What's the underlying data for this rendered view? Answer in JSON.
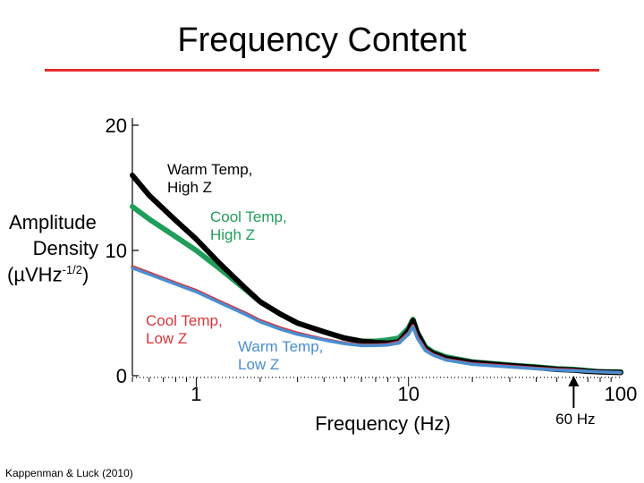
{
  "slide": {
    "title": "Frequency Content",
    "citation": "Kappenman & Luck (2010)"
  },
  "colors": {
    "title_rule": "#e32b2b",
    "warm_high": "#000000",
    "cool_high": "#1f9e5a",
    "cool_low": "#d9343a",
    "warm_low": "#4a8ed0",
    "axis": "#000000"
  },
  "chart_data": {
    "type": "line",
    "title": "",
    "xlabel": "Frequency (Hz)",
    "ylabel_lines": [
      "Amplitude",
      "Density",
      "(µVHz⁻¹ᐟ²)"
    ],
    "ylabel_line1": "Amplitude",
    "ylabel_line2": "Density",
    "ylabel_line3": "(µVHz",
    "ylabel_sup": "-1/2",
    "ylabel_close": ")",
    "x_scale": "log",
    "xlim": [
      0.5,
      100
    ],
    "ylim": [
      0,
      20
    ],
    "x_ticks": [
      {
        "value": 1,
        "label": "1"
      },
      {
        "value": 10,
        "label": "10"
      },
      {
        "value": 100,
        "label": "100"
      }
    ],
    "y_ticks": [
      {
        "value": 0,
        "label": "0"
      },
      {
        "value": 10,
        "label": "10"
      },
      {
        "value": 20,
        "label": "20"
      }
    ],
    "annotation": {
      "label": "60 Hz",
      "x": 60
    },
    "series": [
      {
        "name": "Warm Temp, High Z",
        "label_line1": "Warm Temp,",
        "label_line2": "High Z",
        "color": "#000000",
        "x": [
          0.5,
          0.6,
          0.8,
          1,
          1.3,
          1.7,
          2,
          2.5,
          3,
          4,
          5,
          6,
          7,
          8,
          9,
          10,
          10.5,
          11,
          12,
          13,
          15,
          20,
          30,
          40,
          50,
          60,
          70,
          80,
          100
        ],
        "y": [
          16.0,
          14.4,
          12.4,
          10.9,
          8.9,
          7.0,
          5.9,
          4.9,
          4.2,
          3.5,
          3.0,
          2.75,
          2.65,
          2.6,
          2.7,
          3.6,
          4.4,
          3.4,
          2.2,
          1.8,
          1.4,
          1.05,
          0.8,
          0.65,
          0.5,
          0.45,
          0.35,
          0.3,
          0.25
        ]
      },
      {
        "name": "Cool Temp, High Z",
        "label_line1": "Cool Temp,",
        "label_line2": "High Z",
        "color": "#1f9e5a",
        "x": [
          0.5,
          0.6,
          0.8,
          1,
          1.3,
          1.7,
          2,
          2.5,
          3,
          4,
          5,
          6,
          7,
          8,
          9,
          10,
          10.5,
          11,
          12,
          13,
          15,
          20,
          30,
          40,
          50,
          60,
          70,
          80,
          100
        ],
        "y": [
          13.5,
          12.5,
          11.1,
          10.0,
          8.5,
          6.9,
          5.9,
          4.9,
          4.2,
          3.5,
          3.0,
          2.75,
          2.75,
          2.85,
          3.0,
          3.8,
          4.5,
          3.5,
          2.3,
          1.9,
          1.5,
          1.1,
          0.85,
          0.7,
          0.55,
          0.5,
          0.4,
          0.3,
          0.3
        ]
      },
      {
        "name": "Cool Temp, Low Z",
        "label_line1": "Cool Temp,",
        "label_line2": "Low Z",
        "color": "#d9343a",
        "x": [
          0.5,
          0.6,
          0.8,
          1,
          1.3,
          1.7,
          2,
          2.5,
          3,
          4,
          5,
          6,
          7,
          8,
          9,
          10,
          10.5,
          11,
          12,
          13,
          15,
          20,
          30,
          40,
          50,
          60,
          70,
          80,
          100
        ],
        "y": [
          8.7,
          8.2,
          7.4,
          6.8,
          5.9,
          5.0,
          4.4,
          3.8,
          3.4,
          2.9,
          2.6,
          2.45,
          2.45,
          2.5,
          2.7,
          3.4,
          4.0,
          3.1,
          2.1,
          1.7,
          1.3,
          0.95,
          0.75,
          0.6,
          0.5,
          0.45,
          0.35,
          0.3,
          0.25
        ]
      },
      {
        "name": "Warm Temp, Low Z",
        "label_line1": "Warm Temp,",
        "label_line2": "Low Z",
        "color": "#4a8ed0",
        "x": [
          0.5,
          0.6,
          0.8,
          1,
          1.3,
          1.7,
          2,
          2.5,
          3,
          4,
          5,
          6,
          7,
          8,
          9,
          10,
          10.5,
          11,
          12,
          13,
          15,
          20,
          30,
          40,
          50,
          60,
          70,
          80,
          100
        ],
        "y": [
          8.6,
          8.1,
          7.3,
          6.7,
          5.8,
          4.9,
          4.3,
          3.7,
          3.3,
          2.85,
          2.55,
          2.4,
          2.4,
          2.45,
          2.6,
          3.3,
          3.9,
          3.0,
          2.0,
          1.65,
          1.25,
          0.9,
          0.7,
          0.55,
          0.45,
          0.4,
          0.35,
          0.3,
          0.25
        ]
      }
    ]
  }
}
